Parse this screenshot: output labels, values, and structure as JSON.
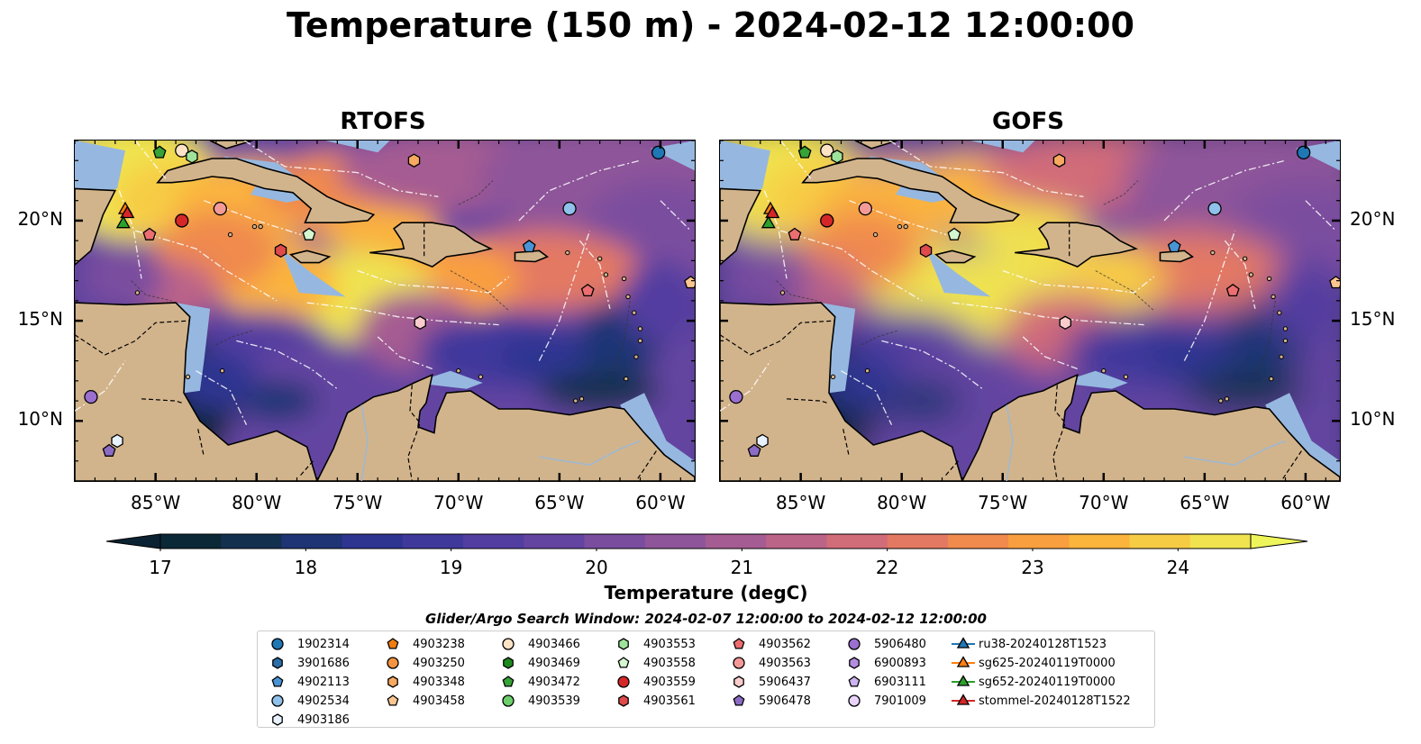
{
  "title": "Temperature (150 m) - 2024-02-12 12:00:00",
  "panels": [
    {
      "title": "RTOFS"
    },
    {
      "title": "GOFS"
    }
  ],
  "axes": {
    "lon_ticks": [
      "85°W",
      "80°W",
      "75°W",
      "70°W",
      "65°W",
      "60°W"
    ],
    "lat_ticks": [
      "20°N",
      "15°N",
      "10°N"
    ],
    "lon_range": [
      -89,
      -58.3
    ],
    "lat_range": [
      7,
      24
    ]
  },
  "colorbar": {
    "label": "Temperature (degC)",
    "ticks": [
      "17",
      "18",
      "19",
      "20",
      "21",
      "22",
      "23",
      "24"
    ],
    "range": [
      17,
      24.5
    ],
    "colors": [
      "#0b2837",
      "#14304f",
      "#1e3475",
      "#2e3591",
      "#40399c",
      "#523ea0",
      "#6444a1",
      "#7a4d9f",
      "#8e559a",
      "#a55c92",
      "#bc6388",
      "#d16c79",
      "#e37963",
      "#f08a4d",
      "#f99f3f",
      "#fbb43c",
      "#f7cc45",
      "#f0e34f"
    ],
    "extend_low": "#0b2232",
    "extend_high": "#eef55a"
  },
  "map_colors": {
    "land": "#d2b48c",
    "shelf": "#96b8e0",
    "river": "#9fb8d0"
  },
  "search_window": "Glider/Argo Search Window: 2024-02-07 12:00:00 to 2024-02-12 12:00:00",
  "legend": [
    {
      "label": "1902314",
      "marker": "circle",
      "color": "#1f77b4"
    },
    {
      "label": "3901686",
      "marker": "hexagon",
      "color": "#2b6ea8"
    },
    {
      "label": "4902113",
      "marker": "pentagon",
      "color": "#4a94d6"
    },
    {
      "label": "4902534",
      "marker": "circle",
      "color": "#8fc1ea"
    },
    {
      "label": "4903186",
      "marker": "hexagon",
      "color": "#e8f2ff"
    },
    {
      "label": "4903238",
      "marker": "pentagon",
      "color": "#f07d12"
    },
    {
      "label": "4903250",
      "marker": "circle",
      "color": "#f59440"
    },
    {
      "label": "4903348",
      "marker": "hexagon",
      "color": "#f7a960"
    },
    {
      "label": "4903458",
      "marker": "pentagon",
      "color": "#fbc690"
    },
    {
      "label": "4903466",
      "marker": "circle",
      "color": "#fde3c6"
    },
    {
      "label": "4903469",
      "marker": "hexagon",
      "color": "#1e8a1e"
    },
    {
      "label": "4903472",
      "marker": "pentagon",
      "color": "#36a336"
    },
    {
      "label": "4903539",
      "marker": "circle",
      "color": "#6ccf6c"
    },
    {
      "label": "4903553",
      "marker": "hexagon",
      "color": "#9ee39a"
    },
    {
      "label": "4903558",
      "marker": "pentagon",
      "color": "#d4f7cf"
    },
    {
      "label": "4903559",
      "marker": "circle",
      "color": "#d62728"
    },
    {
      "label": "4903561",
      "marker": "hexagon",
      "color": "#e04a4a"
    },
    {
      "label": "4903562",
      "marker": "pentagon",
      "color": "#ec6e70"
    },
    {
      "label": "4903563",
      "marker": "circle",
      "color": "#f39a98"
    },
    {
      "label": "5906437",
      "marker": "hexagon",
      "color": "#fbcccc"
    },
    {
      "label": "5906478",
      "marker": "pentagon",
      "color": "#8c6bc4"
    },
    {
      "label": "5906480",
      "marker": "circle",
      "color": "#9a6fd0"
    },
    {
      "label": "6900893",
      "marker": "hexagon",
      "color": "#b48de0"
    },
    {
      "label": "6903111",
      "marker": "pentagon",
      "color": "#ccb3ee"
    },
    {
      "label": "7901009",
      "marker": "circle",
      "color": "#e8d4fb"
    },
    {
      "label": "ru38-20240128T1523",
      "marker": "triangle-line",
      "color": "#1f77b4"
    },
    {
      "label": "sg625-20240119T0000",
      "marker": "triangle-line",
      "color": "#ff7f0e"
    },
    {
      "label": "sg652-20240119T0000",
      "marker": "triangle-line",
      "color": "#2ca02c"
    },
    {
      "label": "stommel-20240128T1522",
      "marker": "triangle-line",
      "color": "#d62728"
    }
  ],
  "map_markers": [
    {
      "lon": -83.7,
      "lat": 23.5,
      "marker": "circle",
      "color": "#fde3c6"
    },
    {
      "lon": -84.8,
      "lat": 23.4,
      "marker": "pentagon",
      "color": "#36a336"
    },
    {
      "lon": -83.2,
      "lat": 23.2,
      "marker": "hexagon",
      "color": "#9ee39a"
    },
    {
      "lon": -72.2,
      "lat": 23.0,
      "marker": "hexagon",
      "color": "#f7a960"
    },
    {
      "lon": -60.1,
      "lat": 23.4,
      "marker": "circle",
      "color": "#1f77b4"
    },
    {
      "lon": -64.5,
      "lat": 20.6,
      "marker": "circle",
      "color": "#8fc1ea"
    },
    {
      "lon": -81.8,
      "lat": 20.6,
      "marker": "circle",
      "color": "#f39a98"
    },
    {
      "lon": -83.7,
      "lat": 20.0,
      "marker": "circle",
      "color": "#d62728"
    },
    {
      "lon": -85.3,
      "lat": 19.3,
      "marker": "pentagon",
      "color": "#ec6e70"
    },
    {
      "lon": -77.4,
      "lat": 19.3,
      "marker": "pentagon",
      "color": "#d4f7cf"
    },
    {
      "lon": -78.8,
      "lat": 18.5,
      "marker": "hexagon",
      "color": "#e04a4a"
    },
    {
      "lon": -66.5,
      "lat": 18.7,
      "marker": "pentagon",
      "color": "#4a94d6"
    },
    {
      "lon": -58.5,
      "lat": 16.9,
      "marker": "pentagon",
      "color": "#fbc690"
    },
    {
      "lon": -63.6,
      "lat": 16.5,
      "marker": "pentagon",
      "color": "#ec6e70"
    },
    {
      "lon": -71.9,
      "lat": 14.9,
      "marker": "hexagon",
      "color": "#fbcccc"
    },
    {
      "lon": -88.2,
      "lat": 11.2,
      "marker": "circle",
      "color": "#9a6fd0"
    },
    {
      "lon": -86.9,
      "lat": 9.0,
      "marker": "hexagon",
      "color": "#e8f2ff"
    },
    {
      "lon": -87.3,
      "lat": 8.5,
      "marker": "pentagon",
      "color": "#8c6bc4"
    },
    {
      "lon": -86.5,
      "lat": 20.6,
      "marker": "triangle",
      "color": "#ff7f0e"
    },
    {
      "lon": -86.4,
      "lat": 20.4,
      "marker": "triangle",
      "color": "#d62728"
    },
    {
      "lon": -86.6,
      "lat": 19.9,
      "marker": "triangle",
      "color": "#2ca02c"
    }
  ]
}
